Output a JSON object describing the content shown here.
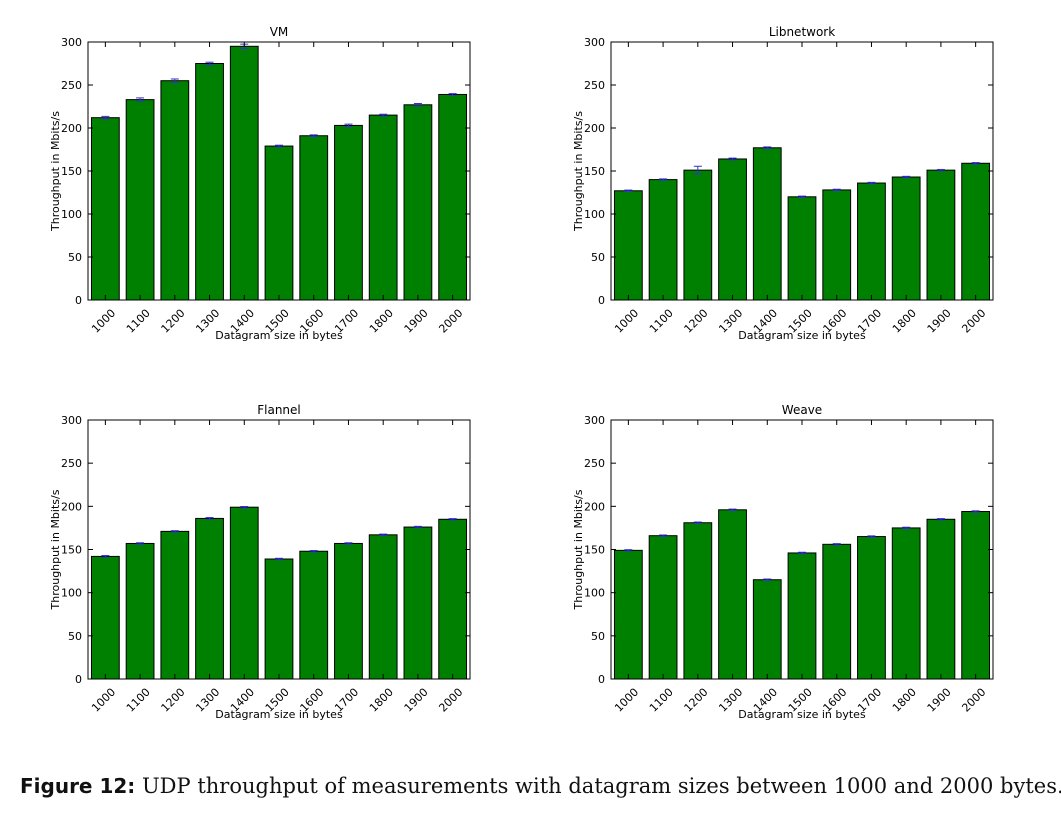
{
  "figure": {
    "caption_label": "Figure 12:",
    "caption_text": "UDP throughput of measurements with datagram sizes between 1000 and 2000 bytes."
  },
  "colors": {
    "bar": "#008000",
    "error_bar": "#3333cc",
    "axis": "#000000"
  },
  "chart_data": [
    {
      "type": "bar",
      "title": "VM",
      "xlabel": "Datagram size in bytes",
      "ylabel": "Throughput in Mbits/s",
      "ylim": [
        0,
        300
      ],
      "yticks": [
        0,
        50,
        100,
        150,
        200,
        250,
        300
      ],
      "grid": false,
      "categories": [
        "1000",
        "1100",
        "1200",
        "1300",
        "1400",
        "1500",
        "1600",
        "1700",
        "1800",
        "1900",
        "2000"
      ],
      "values": [
        212,
        233,
        255,
        275,
        295,
        179,
        191,
        203,
        215,
        227,
        239
      ],
      "errors": [
        1.5,
        2,
        2,
        1.5,
        2.5,
        1,
        1,
        1.5,
        1,
        1.5,
        1
      ]
    },
    {
      "type": "bar",
      "title": "Libnetwork",
      "xlabel": "Datagram size in bytes",
      "ylabel": "Throughput in Mbits/s",
      "ylim": [
        0,
        300
      ],
      "yticks": [
        0,
        50,
        100,
        150,
        200,
        250,
        300
      ],
      "grid": false,
      "categories": [
        "1000",
        "1100",
        "1200",
        "1300",
        "1400",
        "1500",
        "1600",
        "1700",
        "1800",
        "1900",
        "2000"
      ],
      "values": [
        127,
        140,
        151,
        164,
        177,
        120,
        128,
        136,
        143,
        151,
        159
      ],
      "errors": [
        0.8,
        0.8,
        4.5,
        1,
        1,
        0.8,
        0.8,
        0.8,
        0.8,
        0.8,
        0.8
      ]
    },
    {
      "type": "bar",
      "title": "Flannel",
      "xlabel": "Datagram size in bytes",
      "ylabel": "Throughput in Mbits/s",
      "ylim": [
        0,
        300
      ],
      "yticks": [
        0,
        50,
        100,
        150,
        200,
        250,
        300
      ],
      "grid": false,
      "categories": [
        "1000",
        "1100",
        "1200",
        "1300",
        "1400",
        "1500",
        "1600",
        "1700",
        "1800",
        "1900",
        "2000"
      ],
      "values": [
        142,
        157,
        171,
        186,
        199,
        139,
        148,
        157,
        167,
        176,
        185
      ],
      "errors": [
        1,
        0.8,
        0.8,
        1,
        0.8,
        0.8,
        0.8,
        0.8,
        0.8,
        0.8,
        0.8
      ]
    },
    {
      "type": "bar",
      "title": "Weave",
      "xlabel": "Datagram size in bytes",
      "ylabel": "Throughput in Mbits/s",
      "ylim": [
        0,
        300
      ],
      "yticks": [
        0,
        50,
        100,
        150,
        200,
        250,
        300
      ],
      "grid": false,
      "categories": [
        "1000",
        "1100",
        "1200",
        "1300",
        "1400",
        "1500",
        "1600",
        "1700",
        "1800",
        "1900",
        "2000"
      ],
      "values": [
        149,
        166,
        181,
        196,
        115,
        146,
        156,
        165,
        175,
        185,
        194
      ],
      "errors": [
        0.8,
        0.8,
        0.8,
        0.8,
        0.8,
        0.8,
        0.8,
        0.8,
        0.8,
        0.8,
        0.8
      ]
    }
  ]
}
